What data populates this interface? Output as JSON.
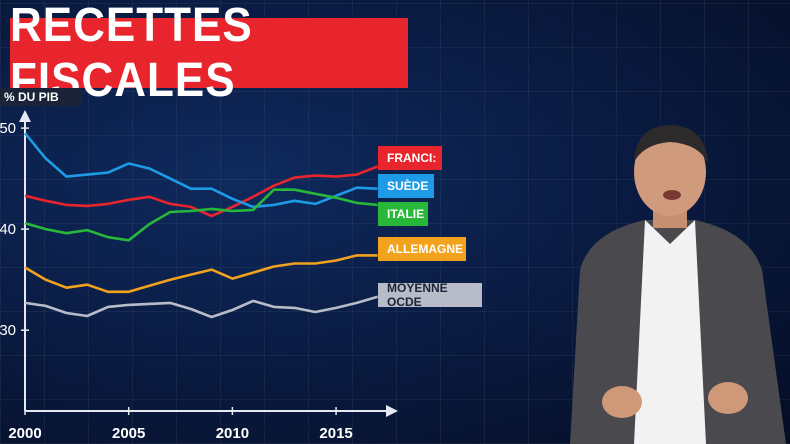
{
  "title": "RECETTES FISCALES",
  "unit_label": "% DU PIB",
  "colors": {
    "france": "#e8242c",
    "suede": "#1e9be6",
    "italie": "#27b83a",
    "allemagne": "#f2a21c",
    "ocde": "#b8bcc8",
    "axis": "#e6e9f2"
  },
  "chart_data": {
    "type": "line",
    "title": "RECETTES FISCALES",
    "ylabel": "% DU PIB",
    "xlabel": "",
    "x": [
      2000,
      2001,
      2002,
      2003,
      2004,
      2005,
      2006,
      2007,
      2008,
      2009,
      2010,
      2011,
      2012,
      2013,
      2014,
      2015,
      2016,
      2017
    ],
    "x_ticks": [
      "2000",
      "2005",
      "2010",
      "2015"
    ],
    "y_ticks": [
      "50",
      "40",
      "30"
    ],
    "ylim": [
      22,
      51
    ],
    "xlim": [
      2000,
      2017.6
    ],
    "grid": false,
    "legend": "right",
    "series": [
      {
        "name": "FRANCE",
        "legend_text": "FRANCI:",
        "values": [
          43.3,
          42.8,
          42.4,
          42.3,
          42.5,
          42.9,
          43.2,
          42.5,
          42.2,
          41.3,
          42.2,
          43.2,
          44.3,
          45.1,
          45.3,
          45.2,
          45.4,
          46.2
        ]
      },
      {
        "name": "SUÈDE",
        "legend_text": "SUÈDE",
        "values": [
          49.5,
          47.0,
          45.2,
          45.4,
          45.6,
          46.5,
          46.0,
          45.0,
          44.0,
          44.0,
          43.0,
          42.2,
          42.4,
          42.8,
          42.5,
          43.3,
          44.1,
          44.0
        ]
      },
      {
        "name": "ITALIE",
        "legend_text": "ITALIE",
        "values": [
          40.6,
          40.0,
          39.6,
          39.9,
          39.2,
          38.9,
          40.5,
          41.7,
          41.8,
          42.0,
          41.8,
          41.9,
          43.9,
          43.9,
          43.5,
          43.1,
          42.6,
          42.4
        ]
      },
      {
        "name": "ALLEMAGNE",
        "legend_text": "ALLEMAGNE",
        "values": [
          36.2,
          35.0,
          34.2,
          34.5,
          33.8,
          33.8,
          34.4,
          35.0,
          35.5,
          36.0,
          35.1,
          35.7,
          36.3,
          36.6,
          36.6,
          36.9,
          37.4,
          37.4
        ]
      },
      {
        "name": "MOYENNE OCDE",
        "legend_text": "MOYENNE OCDE",
        "values": [
          32.7,
          32.4,
          31.7,
          31.4,
          32.3,
          32.5,
          32.6,
          32.7,
          32.1,
          31.3,
          32.0,
          32.9,
          32.3,
          32.2,
          31.8,
          32.2,
          32.7,
          33.3
        ]
      }
    ]
  }
}
